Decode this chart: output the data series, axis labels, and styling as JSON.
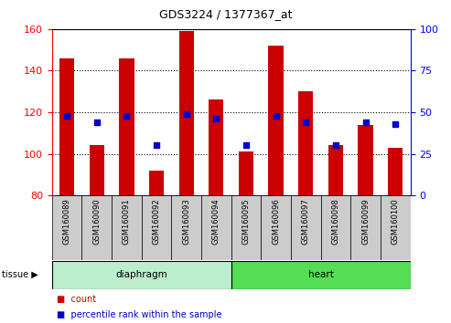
{
  "title": "GDS3224 / 1377367_at",
  "samples": [
    "GSM160089",
    "GSM160090",
    "GSM160091",
    "GSM160092",
    "GSM160093",
    "GSM160094",
    "GSM160095",
    "GSM160096",
    "GSM160097",
    "GSM160098",
    "GSM160099",
    "GSM160100"
  ],
  "counts": [
    146,
    104,
    146,
    92,
    159,
    126,
    101,
    152,
    130,
    104,
    114,
    103
  ],
  "percentiles": [
    48,
    44,
    48,
    30,
    49,
    46,
    30,
    48,
    44,
    30,
    44,
    43
  ],
  "ylim_left": [
    80,
    160
  ],
  "ylim_right": [
    0,
    100
  ],
  "yticks_left": [
    80,
    100,
    120,
    140,
    160
  ],
  "yticks_right": [
    0,
    25,
    50,
    75,
    100
  ],
  "bar_color": "#cc0000",
  "dot_color": "#0000cc",
  "bar_bottom": 80,
  "diaphragm_color": "#bbeecc",
  "heart_color": "#55dd55",
  "tick_bg_color": "#cccccc",
  "tissue_label": "tissue",
  "group1_label": "diaphragm",
  "group2_label": "heart",
  "legend_count_label": "count",
  "legend_pct_label": "percentile rank within the sample",
  "n_diaphragm": 6,
  "n_heart": 6
}
